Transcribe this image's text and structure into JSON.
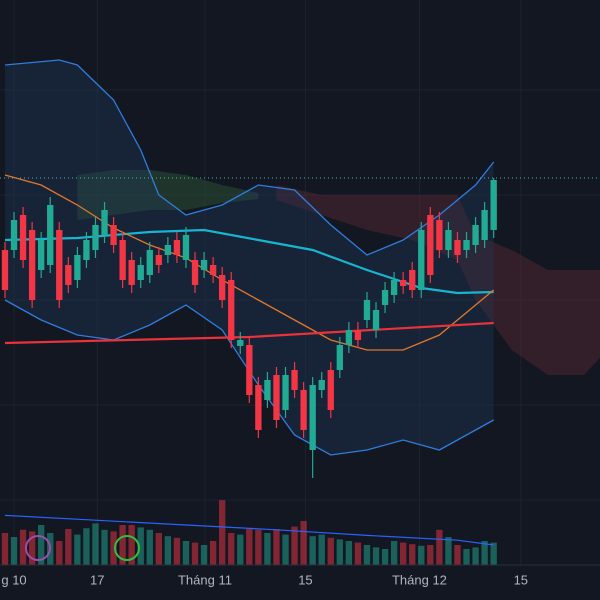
{
  "chart_data": {
    "type": "candlestick",
    "xlim": [
      -0.55,
      65.75
    ],
    "ylim": [
      0,
      565
    ],
    "xticks": [
      {
        "value": 1,
        "label": "g 10"
      },
      {
        "value": 10.2,
        "label": "17"
      },
      {
        "value": 22.1,
        "label": "Tháng 11"
      },
      {
        "value": 33.2,
        "label": "15"
      },
      {
        "value": 45.8,
        "label": "Tháng 12"
      },
      {
        "value": 57,
        "label": "15"
      }
    ],
    "up_color": "#22ab94",
    "down_color": "#f23645",
    "open": [
      315,
      315,
      350,
      335,
      295,
      300,
      335,
      300,
      285,
      305,
      315,
      330,
      340,
      325,
      305,
      285,
      290,
      310,
      310,
      325,
      305,
      305,
      295,
      300,
      290,
      285,
      219,
      220,
      180,
      165,
      190,
      155,
      195,
      175,
      115,
      175,
      195,
      195,
      220,
      235,
      245,
      235,
      260,
      270,
      285,
      295,
      275,
      350,
      345,
      315,
      325,
      315,
      320,
      325,
      335
    ],
    "high": [
      323,
      353,
      358,
      343,
      333,
      368,
      343,
      308,
      318,
      333,
      348,
      363,
      348,
      333,
      313,
      308,
      323,
      318,
      328,
      333,
      338,
      313,
      313,
      308,
      298,
      293,
      233,
      228,
      188,
      193,
      198,
      198,
      203,
      183,
      188,
      193,
      203,
      228,
      243,
      243,
      273,
      263,
      283,
      293,
      293,
      303,
      343,
      358,
      353,
      343,
      333,
      333,
      348,
      363,
      387
    ],
    "low": [
      267,
      307,
      297,
      257,
      287,
      292,
      257,
      272,
      277,
      297,
      307,
      322,
      312,
      277,
      272,
      277,
      282,
      292,
      302,
      302,
      297,
      272,
      287,
      282,
      257,
      217,
      211,
      162,
      127,
      157,
      137,
      147,
      167,
      127,
      87,
      167,
      147,
      187,
      212,
      217,
      237,
      227,
      252,
      262,
      271,
      267,
      267,
      282,
      307,
      307,
      302,
      307,
      312,
      317,
      327
    ],
    "close": [
      275,
      345,
      305,
      265,
      325,
      360,
      265,
      280,
      310,
      325,
      340,
      355,
      320,
      285,
      280,
      300,
      315,
      300,
      320,
      310,
      330,
      280,
      305,
      290,
      265,
      225,
      225,
      170,
      135,
      185,
      145,
      190,
      175,
      135,
      180,
      185,
      155,
      220,
      235,
      225,
      265,
      255,
      275,
      285,
      279,
      275,
      335,
      290,
      315,
      335,
      310,
      325,
      340,
      355,
      385
    ],
    "volume": [
      40,
      35,
      44,
      42,
      50,
      40,
      30,
      45,
      38,
      46,
      52,
      44,
      42,
      50,
      50,
      47,
      44,
      40,
      36,
      34,
      30,
      28,
      25,
      30,
      81,
      40,
      38,
      45,
      44,
      40,
      45,
      38,
      48,
      55,
      36,
      38,
      34,
      32,
      30,
      28,
      25,
      22,
      20,
      30,
      28,
      26,
      24,
      25,
      44,
      35,
      25,
      20,
      22,
      30,
      28
    ],
    "volume_ylim": [
      0,
      100
    ],
    "volume_ma": {
      "color": "#2962ff",
      "x": [
        0,
        10,
        20,
        30,
        40,
        50,
        54
      ],
      "values": [
        62,
        56,
        50,
        44,
        37,
        31,
        25
      ]
    },
    "last_price": 387,
    "last_price_color": "#4fb3b3",
    "bands": {
      "color": "#2f7ddc",
      "fill": "#1f3a5c",
      "upper": {
        "x": [
          0,
          6,
          8,
          12,
          15,
          17,
          20,
          24,
          28,
          32,
          36,
          40,
          44,
          48,
          52,
          54
        ],
        "values": [
          500,
          505,
          500,
          465,
          415,
          370,
          350,
          360,
          380,
          375,
          340,
          310,
          325,
          350,
          380,
          403
        ]
      },
      "lower": {
        "x": [
          0,
          4,
          8,
          12,
          16,
          20,
          24,
          28,
          32,
          36,
          40,
          44,
          48,
          52,
          54
        ],
        "values": [
          265,
          245,
          230,
          225,
          240,
          260,
          235,
          180,
          130,
          110,
          115,
          125,
          115,
          135,
          145
        ]
      }
    },
    "lines": [
      {
        "color": "#17b5d0",
        "x": [
          0,
          8,
          16,
          22,
          28,
          34,
          40,
          46,
          50,
          54
        ],
        "values": [
          325,
          327,
          333,
          335,
          325,
          315,
          295,
          277,
          272,
          273
        ]
      },
      {
        "color": "#e0782c",
        "x": [
          0,
          4,
          8,
          12,
          16,
          20,
          24,
          28,
          32,
          36,
          40,
          44,
          48,
          52,
          54
        ],
        "values": [
          390,
          380,
          360,
          337,
          320,
          307,
          285,
          265,
          245,
          225,
          215,
          215,
          230,
          260,
          275
        ]
      },
      {
        "color": "#e8323c",
        "x": [
          0,
          27,
          54
        ],
        "values": [
          222,
          228,
          242
        ]
      }
    ],
    "clouds": [
      {
        "color": "#2e5a3a",
        "x": [
          8,
          12,
          16,
          20,
          24,
          28
        ],
        "top": [
          390,
          395,
          395,
          390,
          380,
          372
        ],
        "bottom": [
          345,
          350,
          355,
          355,
          362,
          366
        ]
      },
      {
        "color": "#5a2a33",
        "x": [
          30,
          35,
          40,
          45,
          50,
          52,
          56,
          60,
          64,
          66
        ],
        "top": [
          380,
          370,
          370,
          370,
          370,
          330,
          315,
          295,
          295,
          295
        ],
        "bottom": [
          365,
          350,
          335,
          325,
          305,
          265,
          215,
          190,
          190,
          210
        ]
      }
    ]
  }
}
